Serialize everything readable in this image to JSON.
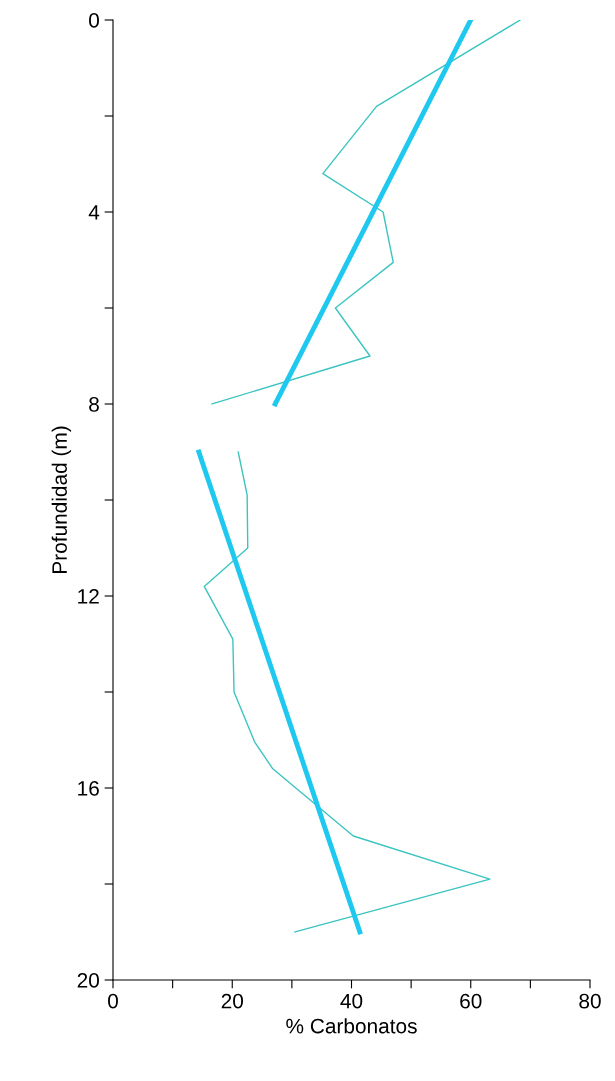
{
  "chart_data": {
    "type": "line",
    "xlabel": "% Carbonatos",
    "ylabel": "Profundidad (m)",
    "xlim": [
      0,
      80
    ],
    "xticks": [
      0,
      {
        "value": 10,
        "label": null
      },
      20,
      {
        "value": 30,
        "label": null
      },
      40,
      {
        "value": 50,
        "label": null
      },
      60,
      {
        "value": 70,
        "label": null
      },
      80
    ],
    "ylim": [
      20,
      0
    ],
    "yticks": [
      0,
      {
        "value": 2,
        "label": null
      },
      4,
      {
        "value": 6,
        "label": null
      },
      8,
      {
        "value": 10,
        "label": null
      },
      12,
      {
        "value": 14,
        "label": null
      },
      16,
      {
        "value": 18,
        "label": null
      },
      20
    ],
    "grid": false,
    "legend": false,
    "marker": "none",
    "line_style": "solid",
    "series": [
      {
        "color": "#3cc4c0",
        "x": [
          68.3,
          44.2,
          35.2,
          45.3,
          47.0,
          37.3,
          43.1,
          16.6
        ],
        "values": [
          0,
          1.8,
          3.2,
          4.0,
          5.05,
          6.0,
          7.0,
          8.0
        ]
      },
      {
        "color": "#3cc4c0",
        "x": [
          21.0,
          22.5,
          22.6,
          15.3,
          20.1,
          20.3,
          23.8,
          26.8,
          40.3,
          63.2,
          30.5
        ],
        "values": [
          9.0,
          9.9,
          11.0,
          11.8,
          12.9,
          14.0,
          15.05,
          15.6,
          17.0,
          17.9,
          19.0
        ]
      },
      {
        "color": "#1ec8ee",
        "x": [
          60.0,
          27.2
        ],
        "values": [
          0,
          8.0
        ]
      },
      {
        "color": "#1ec8ee",
        "x": [
          14.4,
          41.4
        ],
        "values": [
          9.0,
          19.0
        ]
      }
    ]
  }
}
